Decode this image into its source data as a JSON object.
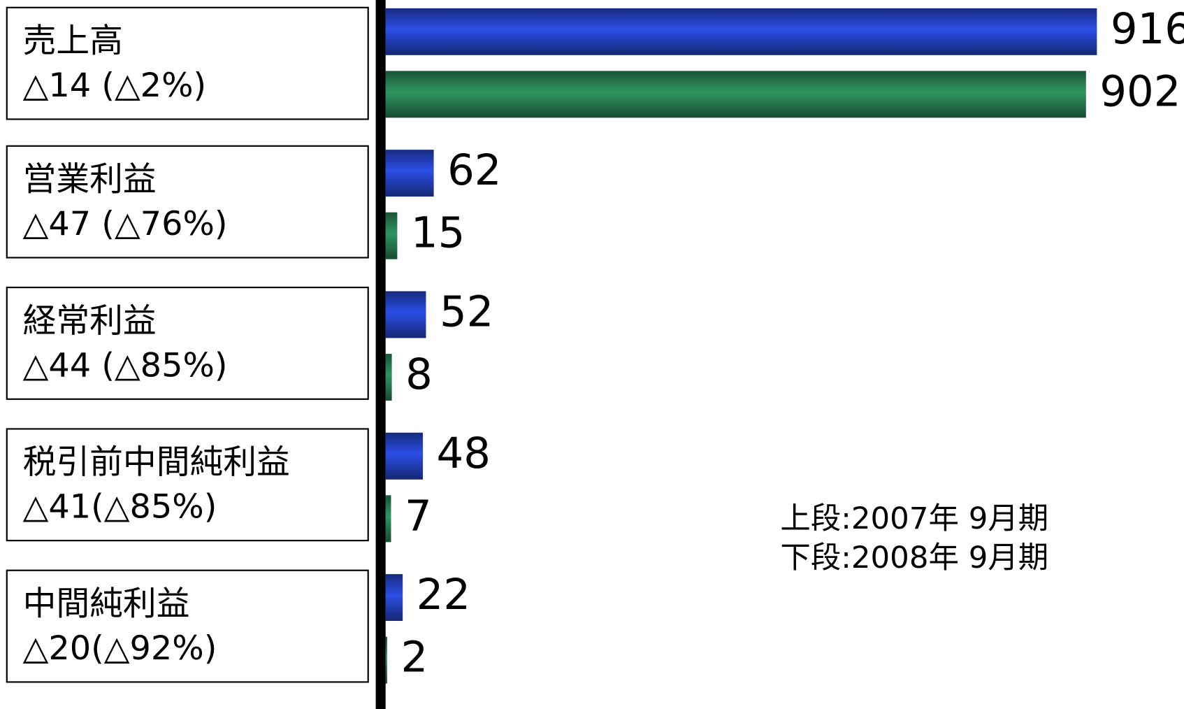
{
  "chart_data": {
    "type": "bar",
    "categories": [
      "売上高",
      "営業利益",
      "経常利益",
      "税引前中間純利益",
      "中間純利益"
    ],
    "changes": [
      "△14 (△2%)",
      "△47 (△76%)",
      "△44 (△85%)",
      "△41(△85%)",
      "△20(△92%)"
    ],
    "series": [
      {
        "name": "上段:2007年 9月期",
        "color": "#2b4ee6",
        "values": [
          916,
          62,
          52,
          48,
          22
        ]
      },
      {
        "name": "下段:2008年 9月期",
        "color": "#2f9560",
        "values": [
          902,
          15,
          8,
          7,
          2
        ]
      }
    ]
  }
}
